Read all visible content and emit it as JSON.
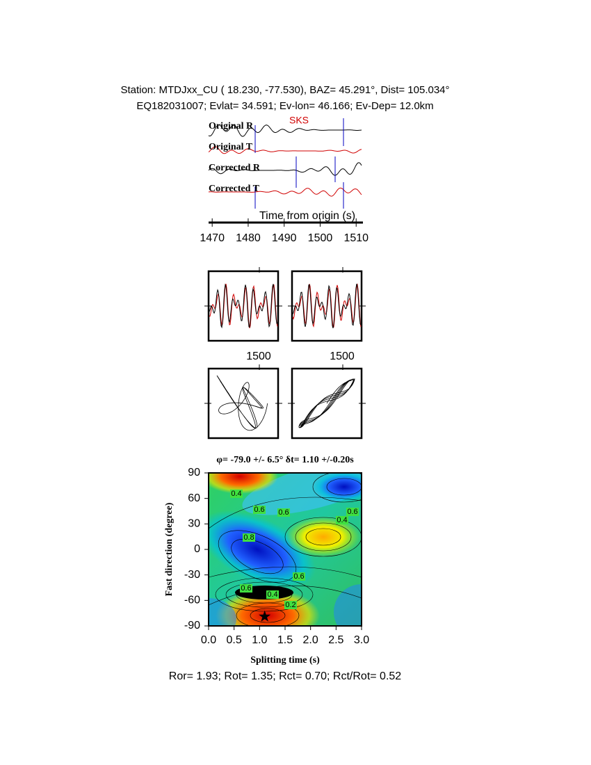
{
  "header": {
    "station": "Station: MTDJxx_CU (  18.230,  -77.530), BAZ=   45.291°, Dist=  105.034°",
    "event": "EQ182031007; Evlat=  34.591; Ev-lon=  46.166; Ev-Dep= 12.0km"
  },
  "chart_data": [
    {
      "type": "waveform",
      "trace_labels": [
        "Original R",
        "Original T",
        "Corrected R",
        "Corrected T"
      ],
      "phase": "SKS",
      "x_label": "Time from origin (s)",
      "xlim": [
        1469,
        1511.5
      ],
      "xticks": [
        1470,
        1480,
        1490,
        1500,
        1510
      ]
    },
    {
      "type": "particle-motion",
      "tick_labels": [
        "1500",
        "1500"
      ]
    },
    {
      "type": "grid-search",
      "title": "φ= -79.0 +/- 6.5° δt= 1.10 +/-0.20s",
      "x_label": "Splitting time (s)",
      "y_label": "Fast direction (degree)",
      "xlim": [
        0,
        3
      ],
      "ylim": [
        -90,
        90
      ],
      "xticks": [
        {
          "value": 0,
          "label": "0.0"
        },
        0.5,
        {
          "value": 1,
          "label": "1.0"
        },
        1.5,
        {
          "value": 2,
          "label": "2.0"
        },
        2.5,
        {
          "value": 3,
          "label": "3.0"
        }
      ],
      "yticks": [
        90,
        60,
        30,
        0,
        -30,
        -60,
        -90
      ],
      "contour_labels": [
        "0.4",
        "0.6",
        "0.6",
        "0.8",
        "0.6",
        "0.4",
        "0.6",
        "0.6",
        "0.4",
        "0.2"
      ],
      "best": {
        "phi": -79.0,
        "dt": 1.1
      }
    }
  ],
  "footer": "Ror= 1.93; Rot= 1.35; Rct= 0.70; Rct/Rot= 0.52"
}
